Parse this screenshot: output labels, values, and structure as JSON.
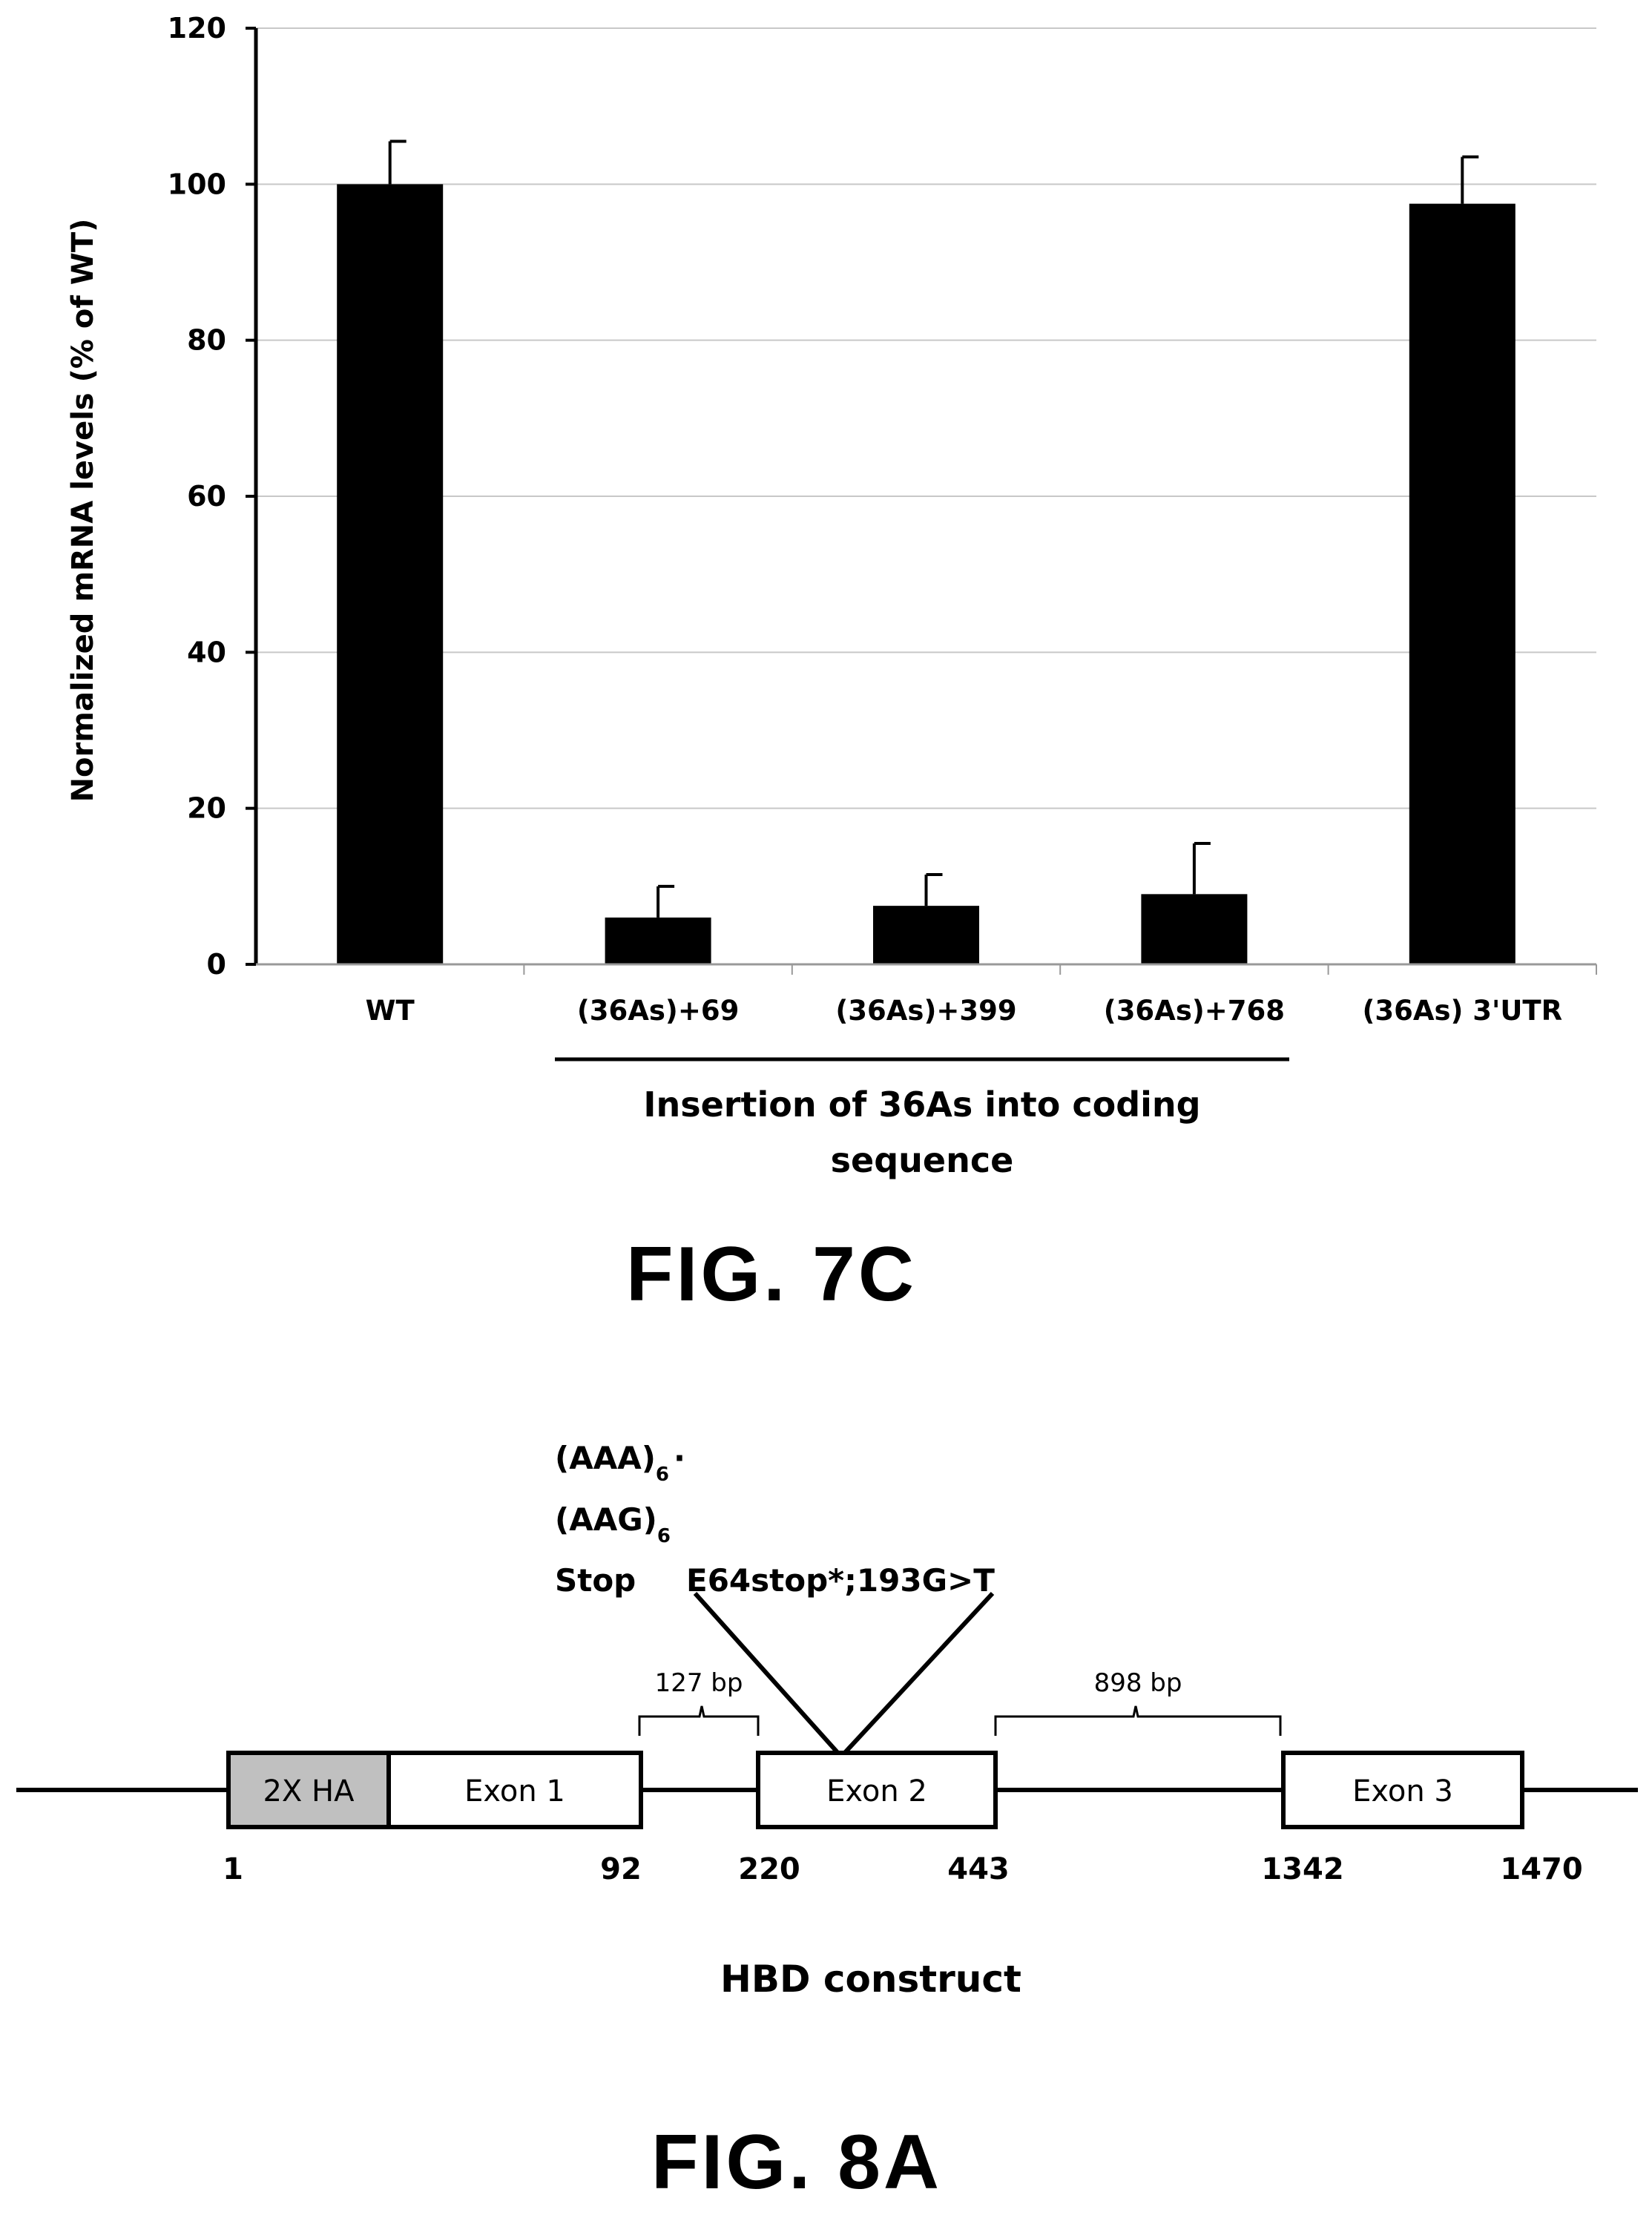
{
  "chart_data": {
    "type": "bar",
    "categories": [
      "WT",
      "(36As)+69",
      "(36As)+399",
      "(36As)+768",
      "(36As) 3'UTR"
    ],
    "values": [
      100,
      6,
      7.5,
      9,
      97.5
    ],
    "error": [
      5.5,
      4,
      4,
      6.5,
      6
    ],
    "ylabel": "Normalized mRNA levels (% of WT)",
    "ylim": [
      0,
      120
    ],
    "yticks": [
      0,
      20,
      40,
      60,
      80,
      100,
      120
    ],
    "grid": true,
    "bar_color": "#000000",
    "grid_color": "#c8c8c8",
    "bracket_label": "Insertion of 36As into  coding sequence",
    "bracket_label_lines": [
      "Insertion of 36As into  coding",
      "sequence"
    ]
  },
  "fig7c_label": "FIG. 7C",
  "fig8a_label": "FIG. 8A",
  "diagram": {
    "mutations": {
      "line1_main": "(AAA)",
      "line1_sub": "6",
      "line1_tail": "·",
      "line2_main": "(AAG)",
      "line2_sub": "6",
      "line3_a": "Stop",
      "line3_b": "E64stop*;193G>T"
    },
    "intron_labels": [
      "127 bp",
      "898 bp"
    ],
    "ha_label": "2X HA",
    "ha_fill": "#c0c0c0",
    "exons": [
      "Exon 1",
      "Exon 2",
      "Exon 3"
    ],
    "positions": [
      "1",
      "92",
      "220",
      "443",
      "1342",
      "1470"
    ],
    "construct_name": "HBD construct"
  }
}
